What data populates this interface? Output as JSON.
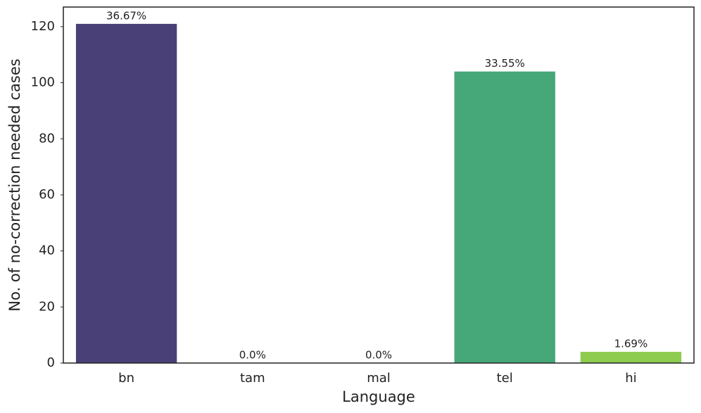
{
  "chart_data": {
    "type": "bar",
    "x_label": "Language",
    "y_label": "No. of no-correction needed cases",
    "categories": [
      "bn",
      "tam",
      "mal",
      "tel",
      "hi"
    ],
    "values": [
      121,
      0,
      0,
      104,
      4
    ],
    "bar_annotations": [
      "36.67%",
      "0.0%",
      "0.0%",
      "33.55%",
      "1.69%"
    ],
    "colors": [
      "#4a4078",
      "#32648e",
      "#277f8e",
      "#46a778",
      "#8ecc50"
    ],
    "ylim": [
      0,
      127
    ],
    "yticks": [
      0,
      20,
      40,
      60,
      80,
      100,
      120
    ],
    "grid": false
  }
}
